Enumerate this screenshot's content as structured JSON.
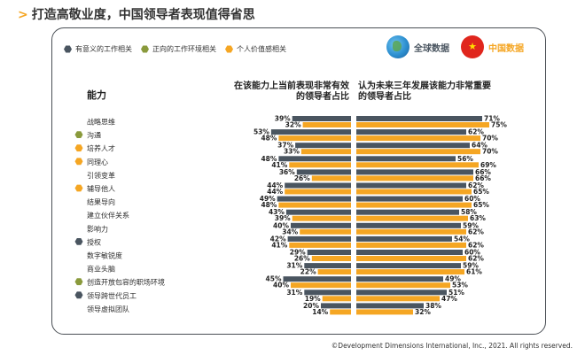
{
  "page": {
    "title": "打造高敬业度，中国领导者表现值得省思",
    "copyright": "©Development Dimensions International, Inc., 2021. All rights reserved."
  },
  "legend": [
    {
      "label": "有意义的工作相关",
      "color": "#4a5560"
    },
    {
      "label": "正向的工作环境相关",
      "color": "#8a9a3c"
    },
    {
      "label": "个人价值感相关",
      "color": "#f5a623"
    }
  ],
  "badges": {
    "global": "全球数据",
    "china": "中国数据",
    "global_icon": "globe-icon",
    "china_icon": "china-flag-icon"
  },
  "headers": {
    "row_header": "能力",
    "left_line1": "在该能力上当前表现非常有效",
    "left_line2": "的领导者占比",
    "right_line1": "认为未来三年发展该能力非常重要",
    "right_line2": "的领导者占比"
  },
  "colors": {
    "global": "#4a5560",
    "china": "#f5a623"
  },
  "chart_data": {
    "type": "bar",
    "series_names": [
      "全球数据",
      "中国数据"
    ],
    "rows": [
      {
        "label": "战略思维",
        "marker": "",
        "left_global": 39,
        "left_china": 32,
        "right_global": 71,
        "right_china": 75
      },
      {
        "label": "沟通",
        "marker": "#8a9a3c",
        "left_global": 53,
        "left_china": 48,
        "right_global": 62,
        "right_china": 70
      },
      {
        "label": "培养人才",
        "marker": "#f5a623",
        "left_global": 37,
        "left_china": 33,
        "right_global": 64,
        "right_china": 70
      },
      {
        "label": "同理心",
        "marker": "#f5a623",
        "left_global": 48,
        "left_china": 41,
        "right_global": 56,
        "right_china": 69
      },
      {
        "label": "引领变革",
        "marker": "",
        "left_global": 36,
        "left_china": 26,
        "right_global": 66,
        "right_china": 66
      },
      {
        "label": "辅导他人",
        "marker": "#f5a623",
        "left_global": 44,
        "left_china": 44,
        "right_global": 62,
        "right_china": 65
      },
      {
        "label": "结果导向",
        "marker": "",
        "left_global": 49,
        "left_china": 48,
        "right_global": 60,
        "right_china": 65
      },
      {
        "label": "建立伙伴关系",
        "marker": "",
        "left_global": 43,
        "left_china": 39,
        "right_global": 58,
        "right_china": 63
      },
      {
        "label": "影响力",
        "marker": "",
        "left_global": 40,
        "left_china": 34,
        "right_global": 59,
        "right_china": 62
      },
      {
        "label": "授权",
        "marker": "#4a5560",
        "left_global": 42,
        "left_china": 41,
        "right_global": 54,
        "right_china": 62
      },
      {
        "label": "数字敏锐度",
        "marker": "",
        "left_global": 29,
        "left_china": 26,
        "right_global": 60,
        "right_china": 62
      },
      {
        "label": "商业头脑",
        "marker": "",
        "left_global": 31,
        "left_china": 22,
        "right_global": 59,
        "right_china": 61
      },
      {
        "label": "创造开放包容的职场环境",
        "marker": "#8a9a3c",
        "left_global": 45,
        "left_china": 40,
        "right_global": 49,
        "right_china": 53
      },
      {
        "label": "领导跨世代员工",
        "marker": "#4a5560",
        "left_global": 31,
        "left_china": 19,
        "right_global": 51,
        "right_china": 47
      },
      {
        "label": "领导虚拟团队",
        "marker": "",
        "left_global": 20,
        "left_china": 14,
        "right_global": 38,
        "right_china": 32
      }
    ]
  }
}
